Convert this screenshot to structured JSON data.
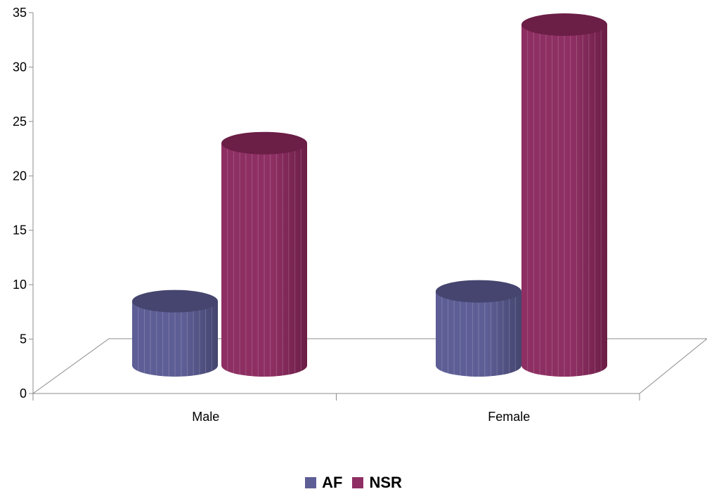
{
  "chart_data": {
    "type": "bar",
    "style": "3d-cylinder",
    "categories": [
      "Male",
      "Female"
    ],
    "series": [
      {
        "name": "AF",
        "values": [
          6.5,
          7.5
        ],
        "color": "#5E5E96",
        "top_color": "#45456F"
      },
      {
        "name": "NSR",
        "values": [
          22.5,
          34.5
        ],
        "color": "#8E2F63",
        "top_color": "#6B1E46"
      }
    ],
    "ylim": [
      0,
      35
    ],
    "yticks": [
      "0",
      "5",
      "10",
      "15",
      "20",
      "25",
      "30",
      "35"
    ],
    "grid": false,
    "legend_position": "bottom",
    "title": "",
    "xlabel": "",
    "ylabel": ""
  }
}
